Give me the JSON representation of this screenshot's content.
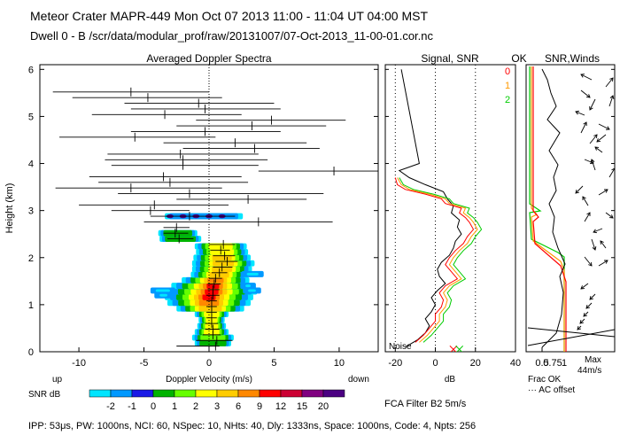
{
  "header": {
    "line1": "Meteor Crater   MAPR-449   Mon Oct 07 2013 11:00 - 11:04 UT 04:00 MST",
    "line2": "Dwell   0  -  B     /scr/data/modular_prof/raw/20131007/07-Oct-2013_11-00-01.cor.nc"
  },
  "panels": {
    "spectra_title": "Averaged Doppler Spectra",
    "signal_title": "Signal, SNR",
    "ok_title": "OK",
    "winds_title": "SNR,Winds"
  },
  "labels": {
    "y_axis": "Height (km)",
    "x_axis": "Doppler Velocity (m/s)",
    "up": "up",
    "down": "down",
    "snr_db": "SNR dB",
    "db": "dB",
    "noise": "Noise",
    "frac_ok": "Frac OK",
    "ac_offset": "··· AC offset",
    "max": "Max",
    "max_val": "44m/s",
    "fca": "FCA Filter B2   5m/s",
    "params": "IPP:  53μs,   PW: 1000ns,   NCI:  60,   NSpec: 10,  NHts: 40,   Dly: 1333ns,   Space: 1000ns,   Code: 4,   Npts: 256"
  },
  "legend": {
    "snr_levels": [
      "-2",
      "-1",
      "0",
      "1",
      "2",
      "3",
      "6",
      "9",
      "12",
      "15",
      "20"
    ],
    "snr_colors": [
      "#00e5ff",
      "#0099ff",
      "#1a1ae6",
      "#00b300",
      "#66ff00",
      "#ffff00",
      "#ffcc00",
      "#ff8800",
      "#ff0000",
      "#cc0033",
      "#800080",
      "#4b0082"
    ]
  },
  "ok_legend": [
    {
      "label": "0",
      "color": "#ff0000"
    },
    {
      "label": "1",
      "color": "#ff9900"
    },
    {
      "label": "2",
      "color": "#00cc00"
    }
  ],
  "chart_data": [
    {
      "type": "heatmap",
      "title": "Averaged Doppler Spectra",
      "xlabel": "Doppler Velocity (m/s)",
      "ylabel": "Height (km)",
      "xlim": [
        -13,
        13
      ],
      "ylim": [
        0,
        6.1
      ],
      "xticks": [
        -10,
        -5,
        0,
        5,
        10
      ],
      "yticks": [
        0,
        1,
        2,
        3,
        4,
        5,
        6
      ],
      "profile": [
        {
          "h": 0.12,
          "v": 0.5,
          "lo": -2.5,
          "hi": 0.8
        },
        {
          "h": 0.24,
          "v": 0.6,
          "lo": -1.0,
          "hi": 1.8
        },
        {
          "h": 0.36,
          "v": 0.3,
          "lo": -0.5,
          "hi": 0.9
        },
        {
          "h": 0.48,
          "v": 0.3,
          "lo": -0.3,
          "hi": 0.8
        },
        {
          "h": 0.6,
          "v": 0.2,
          "lo": -0.3,
          "hi": 0.7
        },
        {
          "h": 0.72,
          "v": 0.2,
          "lo": -0.2,
          "hi": 0.6
        },
        {
          "h": 0.84,
          "v": 0.2,
          "lo": -0.2,
          "hi": 0.6
        },
        {
          "h": 0.96,
          "v": 0.2,
          "lo": -0.2,
          "hi": 0.6
        },
        {
          "h": 1.08,
          "v": 0.2,
          "lo": -0.2,
          "hi": 0.6
        },
        {
          "h": 1.2,
          "v": 0.3,
          "lo": -0.2,
          "hi": 0.8
        },
        {
          "h": 1.32,
          "v": 0.3,
          "lo": -0.1,
          "hi": 0.8
        },
        {
          "h": 1.44,
          "v": 0.4,
          "lo": -0.1,
          "hi": 0.9
        },
        {
          "h": 1.56,
          "v": 0.5,
          "lo": 0.0,
          "hi": 1.0
        },
        {
          "h": 1.68,
          "v": 0.8,
          "lo": 0.2,
          "hi": 1.4
        },
        {
          "h": 1.8,
          "v": 1.0,
          "lo": 0.3,
          "hi": 1.8
        },
        {
          "h": 1.92,
          "v": 1.4,
          "lo": 0.5,
          "hi": 2.2
        },
        {
          "h": 2.04,
          "v": 1.2,
          "lo": 0.3,
          "hi": 2.0
        },
        {
          "h": 2.16,
          "v": 0.9,
          "lo": 0.1,
          "hi": 1.6
        },
        {
          "h": 2.28,
          "v": 1.1,
          "lo": 0.0,
          "hi": 2.0
        },
        {
          "h": 2.4,
          "v": -2.3,
          "lo": -3.2,
          "hi": -1.2
        },
        {
          "h": 2.52,
          "v": -2.6,
          "lo": -3.5,
          "hi": -1.6
        },
        {
          "h": 2.64,
          "v": -2.5,
          "lo": -3.5,
          "hi": -1.5
        },
        {
          "h": 2.76,
          "v": 3.8,
          "lo": -5.0,
          "hi": 9.5
        },
        {
          "h": 2.88,
          "v": -1.5,
          "lo": -4.5,
          "hi": 2.0
        },
        {
          "h": 3.0,
          "v": -4.5,
          "lo": -7.5,
          "hi": -1.5
        },
        {
          "h": 3.12,
          "v": -4.2,
          "lo": -10.0,
          "hi": 1.5
        },
        {
          "h": 3.24,
          "v": 3.0,
          "lo": -2.5,
          "hi": 7.5
        },
        {
          "h": 3.36,
          "v": -1.5,
          "lo": -7.0,
          "hi": 8.8
        },
        {
          "h": 3.48,
          "v": -6.0,
          "lo": -11.8,
          "hi": 1.0
        },
        {
          "h": 3.6,
          "v": -3.0,
          "lo": -8.5,
          "hi": 3.0
        },
        {
          "h": 3.72,
          "v": -3.5,
          "lo": -9.2,
          "hi": 2.5
        },
        {
          "h": 3.84,
          "v": 9.6,
          "lo": 3.8,
          "hi": 15.8
        },
        {
          "h": 3.96,
          "v": -2.0,
          "lo": -7.5,
          "hi": 3.8
        },
        {
          "h": 4.08,
          "v": -2.0,
          "lo": -8.0,
          "hi": 4.5
        },
        {
          "h": 4.2,
          "v": -2.2,
          "lo": -7.8,
          "hi": 3.8
        },
        {
          "h": 4.32,
          "v": 3.5,
          "lo": -2.0,
          "hi": 8.5
        },
        {
          "h": 4.44,
          "v": 2.0,
          "lo": -3.5,
          "hi": 7.5
        },
        {
          "h": 4.56,
          "v": -5.7,
          "lo": -11.5,
          "hi": 0.5
        },
        {
          "h": 4.68,
          "v": -0.3,
          "lo": -6.0,
          "hi": 5.5
        },
        {
          "h": 4.8,
          "v": 3.3,
          "lo": -2.5,
          "hi": 9.0
        },
        {
          "h": 4.92,
          "v": 4.8,
          "lo": -1.0,
          "hi": 10.5
        },
        {
          "h": 5.04,
          "v": -3.4,
          "lo": -9.0,
          "hi": 2.5
        },
        {
          "h": 5.16,
          "v": -0.3,
          "lo": -6.0,
          "hi": 5.5
        },
        {
          "h": 5.28,
          "v": -0.8,
          "lo": -6.5,
          "hi": 5.0
        },
        {
          "h": 5.4,
          "v": -4.7,
          "lo": -10.5,
          "hi": 1.0
        },
        {
          "h": 5.52,
          "v": -6.0,
          "lo": -12.0,
          "hi": 0.0
        }
      ]
    },
    {
      "type": "line",
      "title": "Signal, SNR",
      "xlabel": "dB",
      "xlim": [
        -25,
        40
      ],
      "xticks": [
        -20,
        0,
        20,
        40
      ],
      "ylim": [
        0,
        6.1
      ],
      "series": [
        {
          "name": "Noise",
          "color": "#000000",
          "x": [
            -15,
            -9,
            -5,
            -3,
            -5,
            -2,
            0,
            -2,
            1,
            5,
            2,
            1,
            3,
            7,
            9,
            10,
            13,
            11,
            12,
            8,
            9,
            6,
            4,
            -5,
            -13,
            -18,
            -8,
            -17
          ],
          "y": [
            0.1,
            0.25,
            0.4,
            0.55,
            0.7,
            0.85,
            1.0,
            1.15,
            1.3,
            1.45,
            1.6,
            1.75,
            1.9,
            2.05,
            2.2,
            2.35,
            2.5,
            2.65,
            2.8,
            2.95,
            3.1,
            3.25,
            3.4,
            3.55,
            3.7,
            3.85,
            4.0,
            6.0
          ]
        },
        {
          "name": "0",
          "color": "#ff0000",
          "x": [
            -10,
            -6,
            -3,
            0,
            0,
            3,
            4,
            2,
            5,
            11,
            8,
            5,
            7,
            10,
            14,
            16,
            19,
            17,
            15,
            12,
            13,
            5,
            3,
            -5,
            -15,
            -19,
            -20
          ],
          "y": [
            0.2,
            0.35,
            0.5,
            0.65,
            0.8,
            0.95,
            1.1,
            1.25,
            1.4,
            1.55,
            1.7,
            1.85,
            2.0,
            2.15,
            2.3,
            2.45,
            2.6,
            2.75,
            2.85,
            2.95,
            3.05,
            3.15,
            3.25,
            3.35,
            3.45,
            3.55,
            3.7
          ]
        },
        {
          "name": "1",
          "color": "#ff9900",
          "x": [
            -8,
            -4,
            -1,
            2,
            2,
            5,
            6,
            4,
            7,
            13,
            10,
            7,
            9,
            12,
            16,
            18,
            21,
            19,
            17,
            14,
            15,
            7,
            5,
            -3,
            -13,
            -17,
            -19
          ],
          "y": [
            0.2,
            0.35,
            0.5,
            0.65,
            0.8,
            0.95,
            1.1,
            1.25,
            1.4,
            1.55,
            1.7,
            1.85,
            2.0,
            2.15,
            2.3,
            2.45,
            2.6,
            2.75,
            2.85,
            2.95,
            3.05,
            3.15,
            3.25,
            3.35,
            3.45,
            3.55,
            3.7
          ]
        },
        {
          "name": "2",
          "color": "#00cc00",
          "x": [
            -6,
            -2,
            1,
            4,
            4,
            7,
            8,
            6,
            9,
            15,
            12,
            9,
            11,
            14,
            18,
            20,
            23,
            21,
            19,
            16,
            17,
            9,
            7,
            -1,
            -11,
            -16,
            -18
          ],
          "y": [
            0.2,
            0.35,
            0.5,
            0.65,
            0.8,
            0.95,
            1.1,
            1.25,
            1.4,
            1.55,
            1.7,
            1.85,
            2.0,
            2.15,
            2.3,
            2.45,
            2.6,
            2.75,
            2.85,
            2.95,
            3.05,
            3.15,
            3.25,
            3.35,
            3.45,
            3.55,
            3.7
          ]
        }
      ]
    },
    {
      "type": "line",
      "title": "OK SNR,Winds",
      "xlabel": "Frac OK",
      "xticks": [
        "0.5",
        "1"
      ],
      "max_label": "Max 44m/s"
    }
  ]
}
